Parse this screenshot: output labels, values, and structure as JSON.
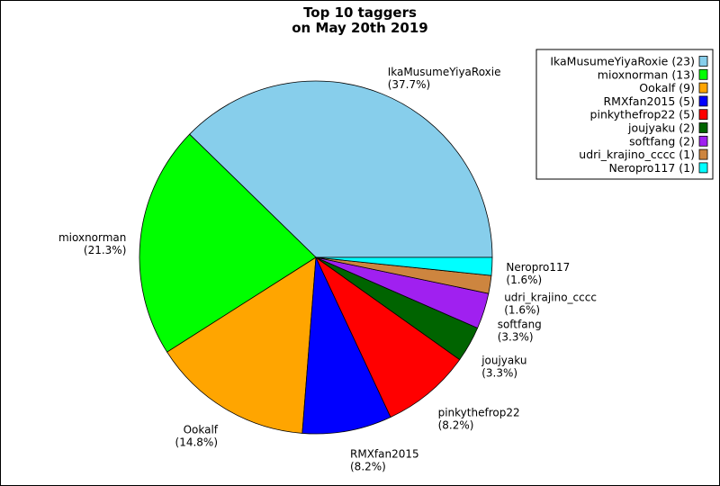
{
  "chart_data": {
    "type": "pie",
    "title": [
      "Top 10 taggers",
      "on May 20th 2019"
    ],
    "slices": [
      {
        "label": "IkaMusumeYiyaRoxie",
        "value": 23,
        "percent": "37.7%",
        "legend": "IkaMusumeYiyaRoxie (23)",
        "color": "#87ceeb"
      },
      {
        "label": "mioxnorman",
        "value": 13,
        "percent": "21.3%",
        "legend": "mioxnorman (13)",
        "color": "#00ff00"
      },
      {
        "label": "Ookalf",
        "value": 9,
        "percent": "14.8%",
        "legend": "Ookalf (9)",
        "color": "#ffa500"
      },
      {
        "label": "RMXfan2015",
        "value": 5,
        "percent": "8.2%",
        "legend": "RMXfan2015 (5)",
        "color": "#0000ff"
      },
      {
        "label": "pinkythefrop22",
        "value": 5,
        "percent": "8.2%",
        "legend": "pinkythefrop22 (5)",
        "color": "#ff0000"
      },
      {
        "label": "joujyaku",
        "value": 2,
        "percent": "3.3%",
        "legend": "joujyaku (2)",
        "color": "#006400"
      },
      {
        "label": "softfang",
        "value": 2,
        "percent": "3.3%",
        "legend": "softfang (2)",
        "color": "#a020f0"
      },
      {
        "label": "udri_krajino_cccc",
        "value": 1,
        "percent": "1.6%",
        "legend": "udri_krajino_cccc (1)",
        "color": "#cd853f"
      },
      {
        "label": "Neropro117",
        "value": 1,
        "percent": "1.6%",
        "legend": "Neropro117 (1)",
        "color": "#00ffff"
      }
    ],
    "legend_position": "top-right"
  }
}
